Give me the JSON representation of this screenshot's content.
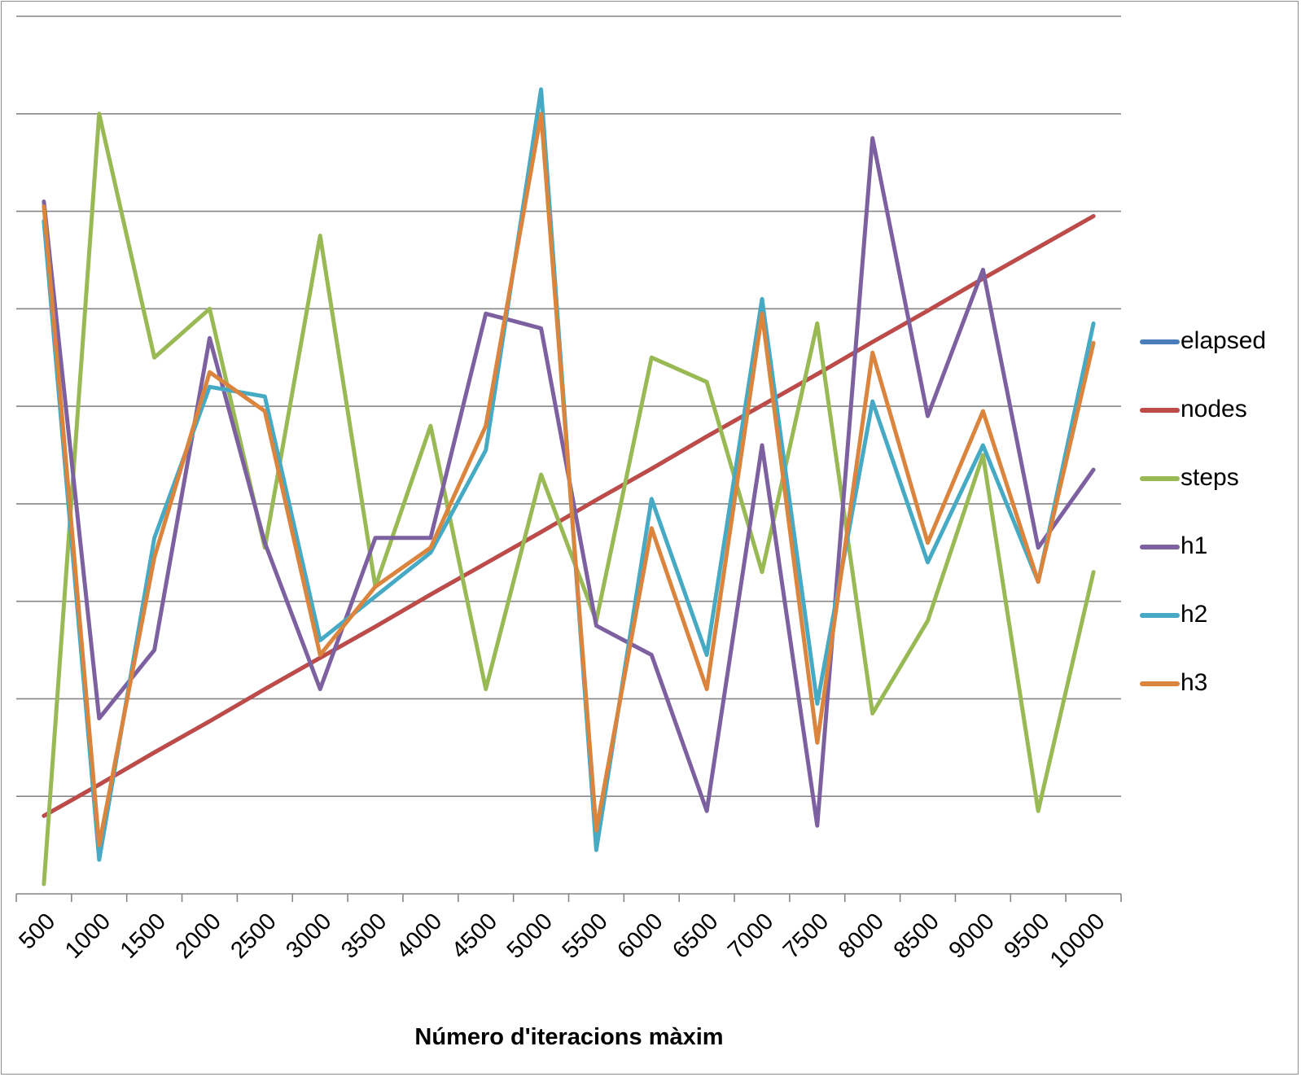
{
  "chart_data": {
    "type": "line",
    "title": "",
    "xlabel": "Número d'iteracions màxim",
    "ylabel": "",
    "categories": [
      "500",
      "1000",
      "1500",
      "2000",
      "2500",
      "3000",
      "3500",
      "4000",
      "4500",
      "5000",
      "5500",
      "6000",
      "6500",
      "7000",
      "7500",
      "8000",
      "8500",
      "9000",
      "9500",
      "10000"
    ],
    "ylim": [
      0,
      9
    ],
    "grid": true,
    "legend_position": "right",
    "series": [
      {
        "name": "elapsed",
        "color": "#4a7ebb",
        "values": [
          0.8,
          1.12,
          1.45,
          1.77,
          2.1,
          2.42,
          2.74,
          3.07,
          3.39,
          3.71,
          4.04,
          4.36,
          4.69,
          5.01,
          5.33,
          5.66,
          5.98,
          6.31,
          6.63,
          6.95
        ]
      },
      {
        "name": "nodes",
        "color": "#be4b48",
        "values": [
          0.8,
          1.12,
          1.45,
          1.77,
          2.1,
          2.42,
          2.74,
          3.07,
          3.39,
          3.71,
          4.04,
          4.36,
          4.69,
          5.01,
          5.33,
          5.66,
          5.98,
          6.31,
          6.63,
          6.95
        ]
      },
      {
        "name": "steps",
        "color": "#98b954",
        "values": [
          0.1,
          8.0,
          5.5,
          6.0,
          3.55,
          6.75,
          3.15,
          4.8,
          2.1,
          4.3,
          2.8,
          5.5,
          5.25,
          3.3,
          5.85,
          1.85,
          2.8,
          4.5,
          0.85,
          3.3
        ]
      },
      {
        "name": "h1",
        "color": "#7d60a0",
        "values": [
          7.1,
          1.8,
          2.5,
          5.7,
          3.6,
          2.1,
          3.65,
          3.65,
          5.95,
          5.8,
          2.75,
          2.45,
          0.85,
          4.6,
          0.7,
          7.75,
          4.9,
          6.4,
          3.55,
          4.35
        ]
      },
      {
        "name": "h2",
        "color": "#46aac4",
        "values": [
          6.9,
          0.35,
          3.65,
          5.2,
          5.1,
          2.6,
          3.05,
          3.5,
          4.55,
          8.25,
          0.45,
          4.05,
          2.45,
          6.1,
          1.95,
          5.05,
          3.4,
          4.6,
          3.2,
          5.85
        ]
      },
      {
        "name": "h3",
        "color": "#db843d",
        "values": [
          7.05,
          0.5,
          3.45,
          5.35,
          4.95,
          2.45,
          3.15,
          3.55,
          4.8,
          8.0,
          0.65,
          3.75,
          2.1,
          5.95,
          1.55,
          5.55,
          3.6,
          4.95,
          3.2,
          5.65
        ]
      }
    ]
  }
}
